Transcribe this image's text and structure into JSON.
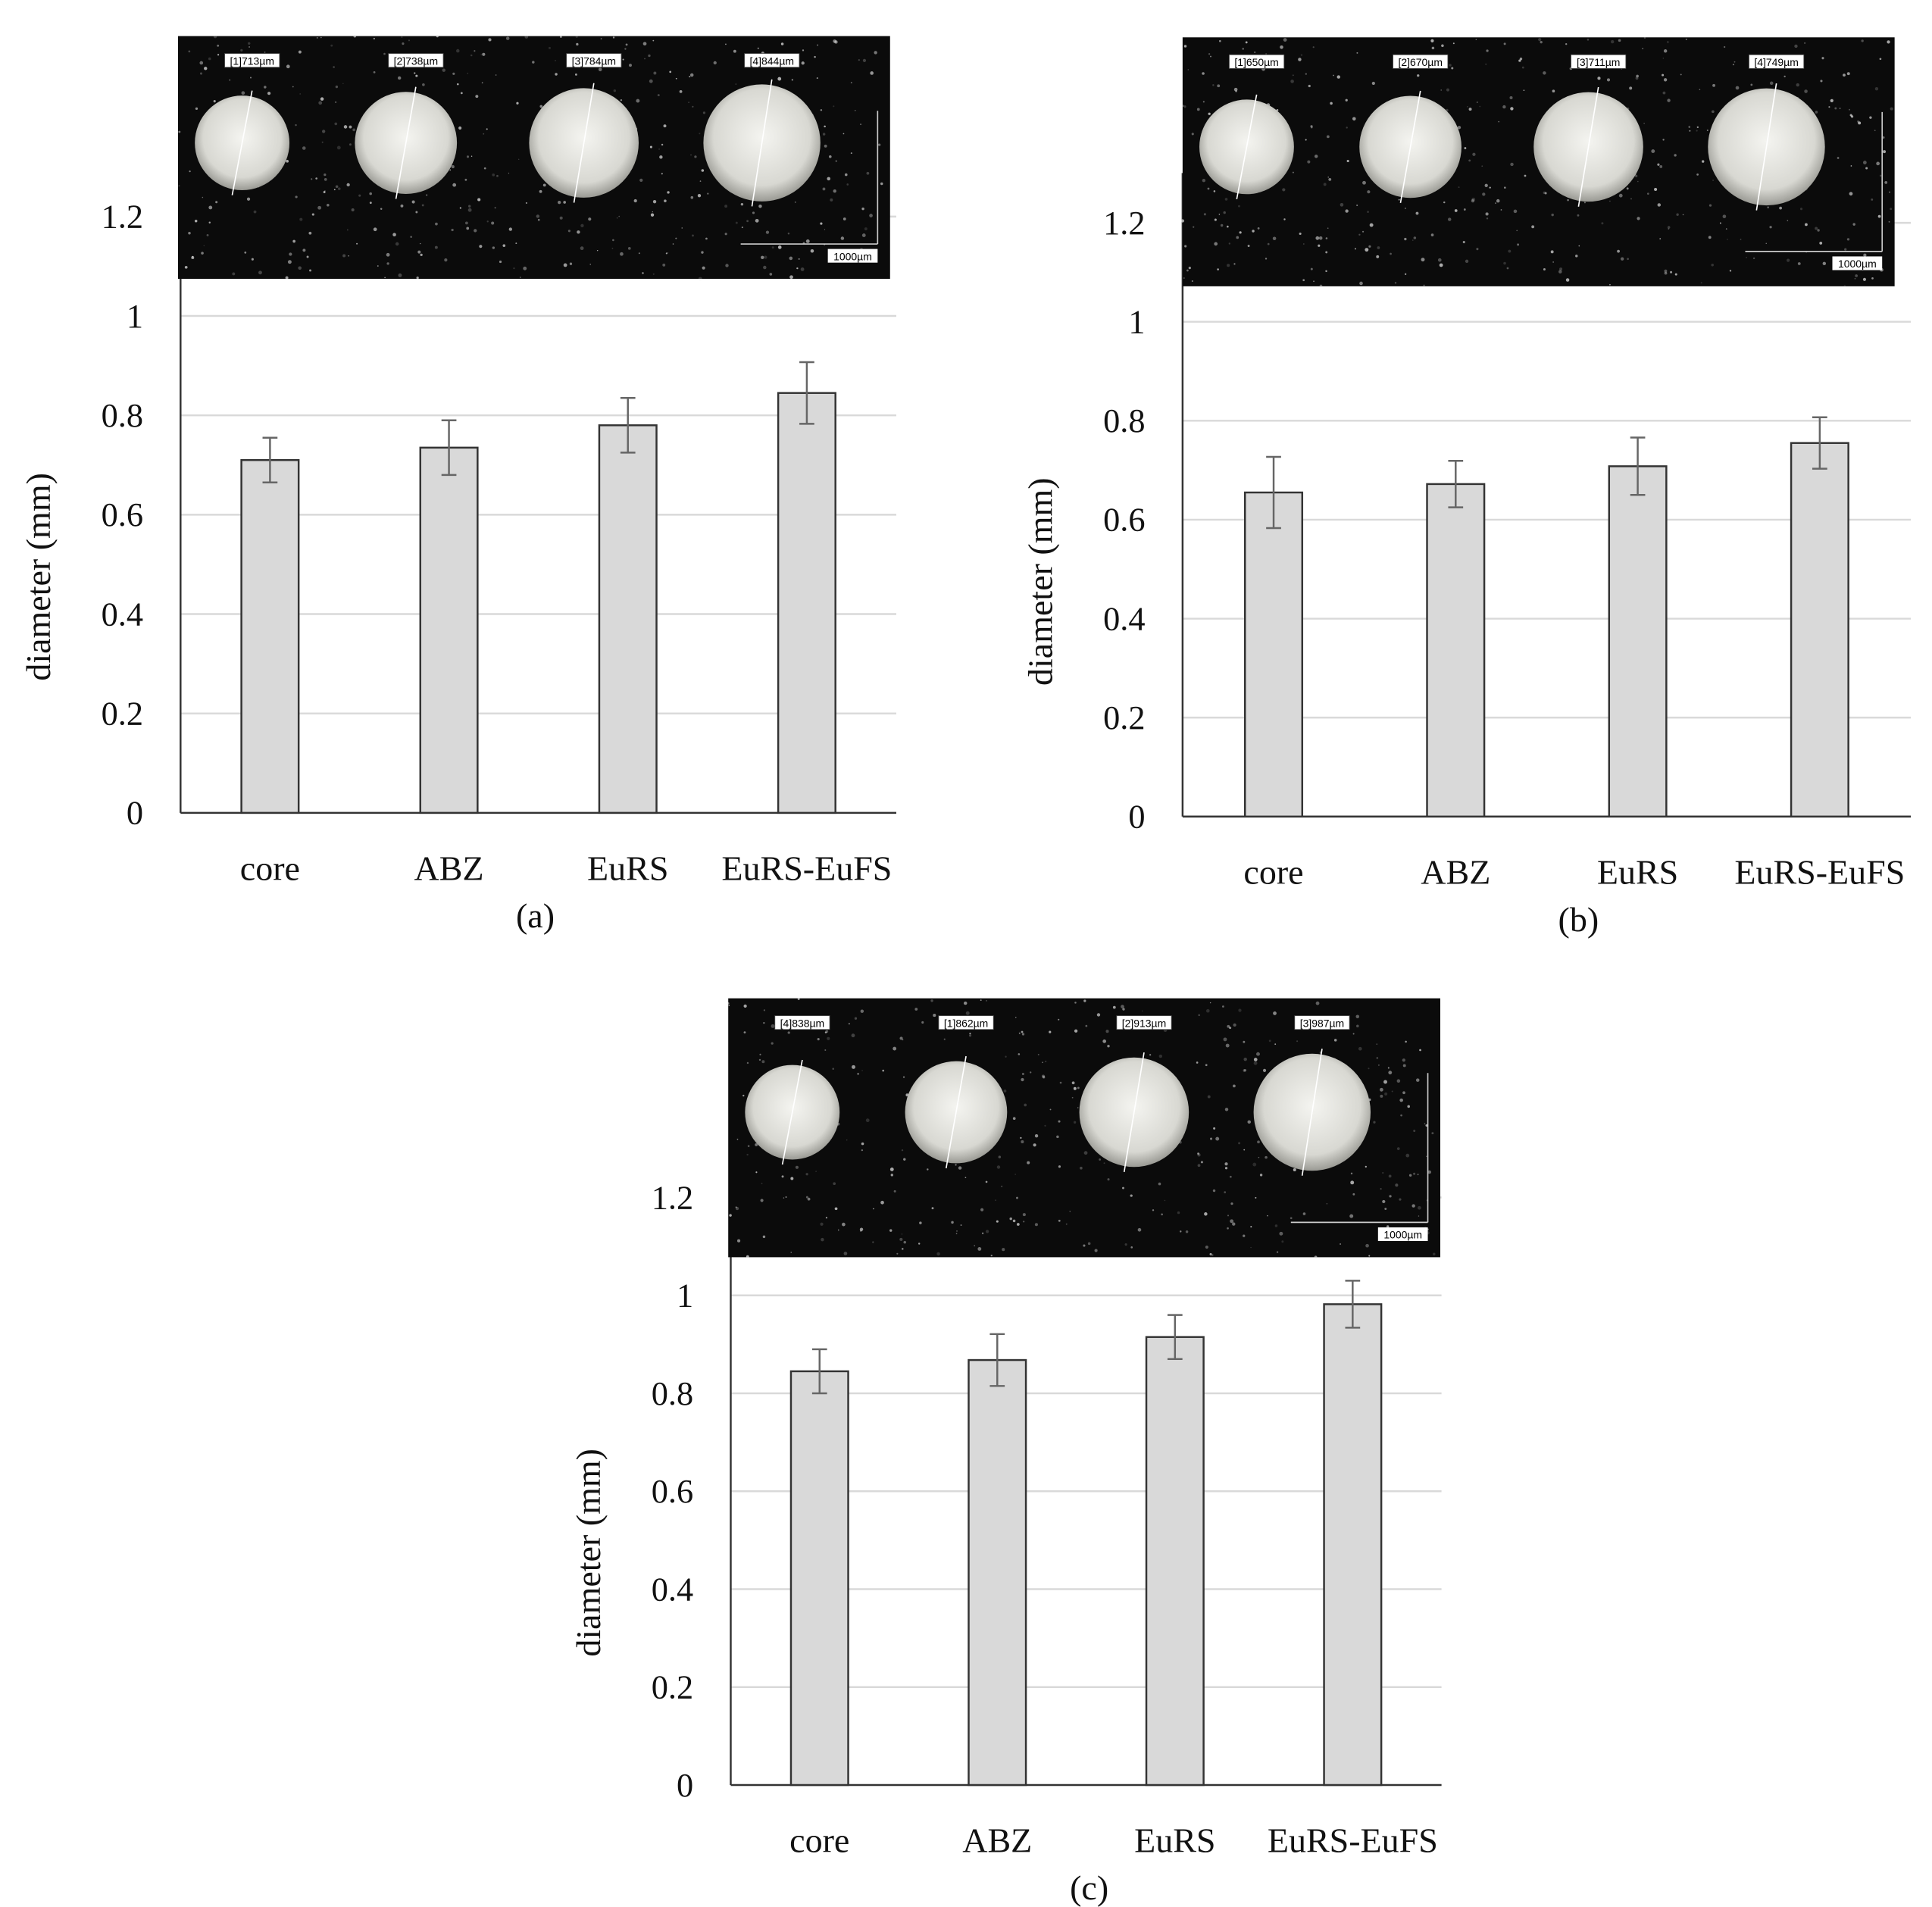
{
  "chart_data": [
    {
      "type": "bar",
      "ylabel": "diameter (mm)",
      "panel": "(a)",
      "categories": [
        "core",
        "ABZ",
        "EuRS",
        "EuRS-EuFS"
      ],
      "values": [
        0.71,
        0.735,
        0.78,
        0.845
      ],
      "errors": [
        0.045,
        0.055,
        0.055,
        0.062
      ],
      "ylim": [
        0,
        1.2
      ],
      "yticks": [
        0,
        0.2,
        0.4,
        0.6,
        0.8,
        1,
        1.2
      ],
      "grid": true,
      "color": "#d9d9d9",
      "image_labels": [
        "[1]713µm",
        "[2]738µm",
        "[3]784µm",
        "[4]844µm"
      ],
      "scale_label": "1000µm"
    },
    {
      "type": "bar",
      "ylabel": "diameter (mm)",
      "panel": "(b)",
      "categories": [
        "core",
        "ABZ",
        "EuRS",
        "EuRS-EuFS"
      ],
      "values": [
        0.655,
        0.672,
        0.708,
        0.755
      ],
      "errors": [
        0.072,
        0.047,
        0.058,
        0.052
      ],
      "ylim": [
        0,
        1.2
      ],
      "yticks": [
        0,
        0.2,
        0.4,
        0.6,
        0.8,
        1,
        1.2
      ],
      "grid": true,
      "color": "#d9d9d9",
      "image_labels": [
        "[1]650µm",
        "[2]670µm",
        "[3]711µm",
        "[4]749µm"
      ],
      "scale_label": "1000µm"
    },
    {
      "type": "bar",
      "ylabel": "diameter (mm)",
      "panel": "(c)",
      "categories": [
        "core",
        "ABZ",
        "EuRS",
        "EuRS-EuFS"
      ],
      "values": [
        0.845,
        0.868,
        0.915,
        0.982
      ],
      "errors": [
        0.045,
        0.053,
        0.045,
        0.048
      ],
      "ylim": [
        0,
        1.2
      ],
      "yticks": [
        0,
        0.2,
        0.4,
        0.6,
        0.8,
        1,
        1.2
      ],
      "grid": true,
      "color": "#d9d9d9",
      "image_labels": [
        "[4]838µm",
        "[1]862µm",
        "[2]913µm",
        "[3]987µm"
      ],
      "scale_label": "1000µm"
    }
  ]
}
